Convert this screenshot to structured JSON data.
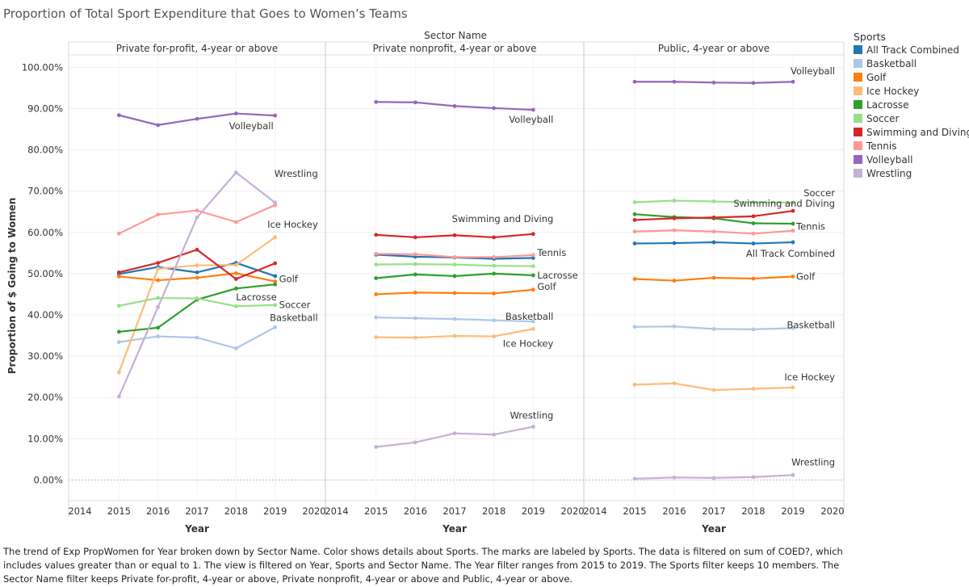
{
  "chart_data": {
    "type": "line",
    "title": "Proportion of Total Sport Expenditure that Goes to Women’s Teams",
    "column_header": "Sector Name",
    "xlabel": "Year",
    "ylabel": "Proportion of $ Going to Women",
    "x_ticks": [
      "2014",
      "2015",
      "2016",
      "2017",
      "2018",
      "2019",
      "2020"
    ],
    "xlim": [
      2014,
      2020
    ],
    "ylim": [
      -0.05,
      1.03
    ],
    "y_ticks": [
      "0.00%",
      "10.00%",
      "20.00%",
      "30.00%",
      "40.00%",
      "50.00%",
      "60.00%",
      "70.00%",
      "80.00%",
      "90.00%",
      "100.00%"
    ],
    "grid": true,
    "legend_placement": "right",
    "legend_title": "Sports",
    "legend": [
      {
        "name": "All Track Combined",
        "color": "#1f77b4"
      },
      {
        "name": "Basketball",
        "color": "#aec7e8"
      },
      {
        "name": "Golf",
        "color": "#ff7f0e"
      },
      {
        "name": "Ice Hockey",
        "color": "#ffbb78"
      },
      {
        "name": "Lacrosse",
        "color": "#2ca02c"
      },
      {
        "name": "Soccer",
        "color": "#98df8a"
      },
      {
        "name": "Swimming and Diving",
        "color": "#d62728"
      },
      {
        "name": "Tennis",
        "color": "#ff9896"
      },
      {
        "name": "Volleyball",
        "color": "#9467bd"
      },
      {
        "name": "Wrestling",
        "color": "#c5b0d5"
      }
    ],
    "x": [
      2015,
      2016,
      2017,
      2018,
      2019
    ],
    "panels": [
      {
        "name": "Private for-profit, 4-year or above",
        "series": [
          {
            "name": "All Track Combined",
            "values": [
              0.499,
              0.516,
              0.503,
              0.526,
              0.494
            ]
          },
          {
            "name": "Basketball",
            "values": [
              0.334,
              0.348,
              0.345,
              0.319,
              0.37
            ]
          },
          {
            "name": "Golf",
            "values": [
              0.493,
              0.484,
              0.49,
              0.501,
              0.481
            ]
          },
          {
            "name": "Ice Hockey",
            "values": [
              0.261,
              0.512,
              0.52,
              0.521,
              0.588
            ]
          },
          {
            "name": "Lacrosse",
            "values": [
              0.359,
              0.369,
              0.437,
              0.464,
              0.474
            ]
          },
          {
            "name": "Soccer",
            "values": [
              0.422,
              0.441,
              0.44,
              0.421,
              0.424
            ]
          },
          {
            "name": "Swimming and Diving",
            "values": [
              0.503,
              0.526,
              0.558,
              0.487,
              0.525
            ]
          },
          {
            "name": "Tennis",
            "values": [
              0.597,
              0.643,
              0.653,
              0.625,
              0.666
            ]
          },
          {
            "name": "Volleyball",
            "values": [
              0.884,
              0.86,
              0.875,
              0.888,
              0.883
            ]
          },
          {
            "name": "Wrestling",
            "values": [
              0.202,
              0.419,
              0.636,
              0.745,
              0.672
            ]
          }
        ]
      },
      {
        "name": "Private nonprofit, 4-year or above",
        "series": [
          {
            "name": "All Track Combined",
            "values": [
              0.546,
              0.541,
              0.539,
              0.536,
              0.538
            ]
          },
          {
            "name": "Basketball",
            "values": [
              0.394,
              0.392,
              0.39,
              0.387,
              0.384
            ]
          },
          {
            "name": "Golf",
            "values": [
              0.45,
              0.454,
              0.453,
              0.452,
              0.461
            ]
          },
          {
            "name": "Ice Hockey",
            "values": [
              0.346,
              0.345,
              0.349,
              0.348,
              0.366
            ]
          },
          {
            "name": "Lacrosse",
            "values": [
              0.489,
              0.498,
              0.494,
              0.5,
              0.496
            ]
          },
          {
            "name": "Soccer",
            "values": [
              0.522,
              0.523,
              0.522,
              0.519,
              0.518
            ]
          },
          {
            "name": "Swimming and Diving",
            "values": [
              0.594,
              0.588,
              0.593,
              0.588,
              0.596
            ]
          },
          {
            "name": "Tennis",
            "values": [
              0.548,
              0.547,
              0.54,
              0.54,
              0.545
            ]
          },
          {
            "name": "Volleyball",
            "values": [
              0.916,
              0.915,
              0.906,
              0.901,
              0.897
            ]
          },
          {
            "name": "Wrestling",
            "values": [
              0.08,
              0.091,
              0.113,
              0.11,
              0.129
            ]
          }
        ]
      },
      {
        "name": "Public, 4-year or above",
        "series": [
          {
            "name": "All Track Combined",
            "values": [
              0.573,
              0.574,
              0.576,
              0.573,
              0.576
            ]
          },
          {
            "name": "Basketball",
            "values": [
              0.371,
              0.372,
              0.366,
              0.365,
              0.368
            ]
          },
          {
            "name": "Golf",
            "values": [
              0.487,
              0.483,
              0.49,
              0.488,
              0.493
            ]
          },
          {
            "name": "Ice Hockey",
            "values": [
              0.231,
              0.234,
              0.218,
              0.221,
              0.224
            ]
          },
          {
            "name": "Lacrosse",
            "values": [
              0.644,
              0.637,
              0.634,
              0.622,
              0.621
            ]
          },
          {
            "name": "Soccer",
            "values": [
              0.673,
              0.677,
              0.675,
              0.673,
              0.672
            ]
          },
          {
            "name": "Swimming and Diving",
            "values": [
              0.63,
              0.634,
              0.636,
              0.639,
              0.652
            ]
          },
          {
            "name": "Tennis",
            "values": [
              0.602,
              0.605,
              0.602,
              0.597,
              0.604
            ]
          },
          {
            "name": "Volleyball",
            "values": [
              0.965,
              0.965,
              0.963,
              0.962,
              0.965
            ]
          },
          {
            "name": "Wrestling",
            "values": [
              0.003,
              0.006,
              0.005,
              0.007,
              0.012
            ]
          }
        ]
      }
    ],
    "labels": [
      {
        "panel": 0,
        "text": "Volleyball"
      },
      {
        "panel": 0,
        "text": "Wrestling"
      },
      {
        "panel": 0,
        "text": "Ice Hockey"
      },
      {
        "panel": 0,
        "text": "Golf"
      },
      {
        "panel": 0,
        "text": "Lacrosse"
      },
      {
        "panel": 0,
        "text": "Soccer"
      },
      {
        "panel": 0,
        "text": "Basketball"
      },
      {
        "panel": 1,
        "text": "Volleyball"
      },
      {
        "panel": 1,
        "text": "Swimming and Diving"
      },
      {
        "panel": 1,
        "text": "Tennis"
      },
      {
        "panel": 1,
        "text": "Lacrosse"
      },
      {
        "panel": 1,
        "text": "Golf"
      },
      {
        "panel": 1,
        "text": "Basketball"
      },
      {
        "panel": 1,
        "text": "Ice Hockey"
      },
      {
        "panel": 1,
        "text": "Wrestling"
      },
      {
        "panel": 2,
        "text": "Volleyball"
      },
      {
        "panel": 2,
        "text": "Soccer"
      },
      {
        "panel": 2,
        "text": "Swimming and Diving"
      },
      {
        "panel": 2,
        "text": "Tennis"
      },
      {
        "panel": 2,
        "text": "All Track Combined"
      },
      {
        "panel": 2,
        "text": "Golf"
      },
      {
        "panel": 2,
        "text": "Basketball"
      },
      {
        "panel": 2,
        "text": "Ice Hockey"
      },
      {
        "panel": 2,
        "text": "Wrestling"
      }
    ]
  },
  "caption": "The trend of Exp PropWomen for Year broken down by Sector Name.  Color shows details about Sports.  The marks are labeled by Sports. The data is filtered on sum of COED?, which includes values greater than or equal to 1. The view is filtered on Year, Sports and Sector Name. The Year filter ranges from 2015 to 2019. The Sports filter keeps 10 members. The Sector Name filter keeps Private for-profit, 4-year or above, Private nonprofit, 4-year or above and Public, 4-year or above."
}
